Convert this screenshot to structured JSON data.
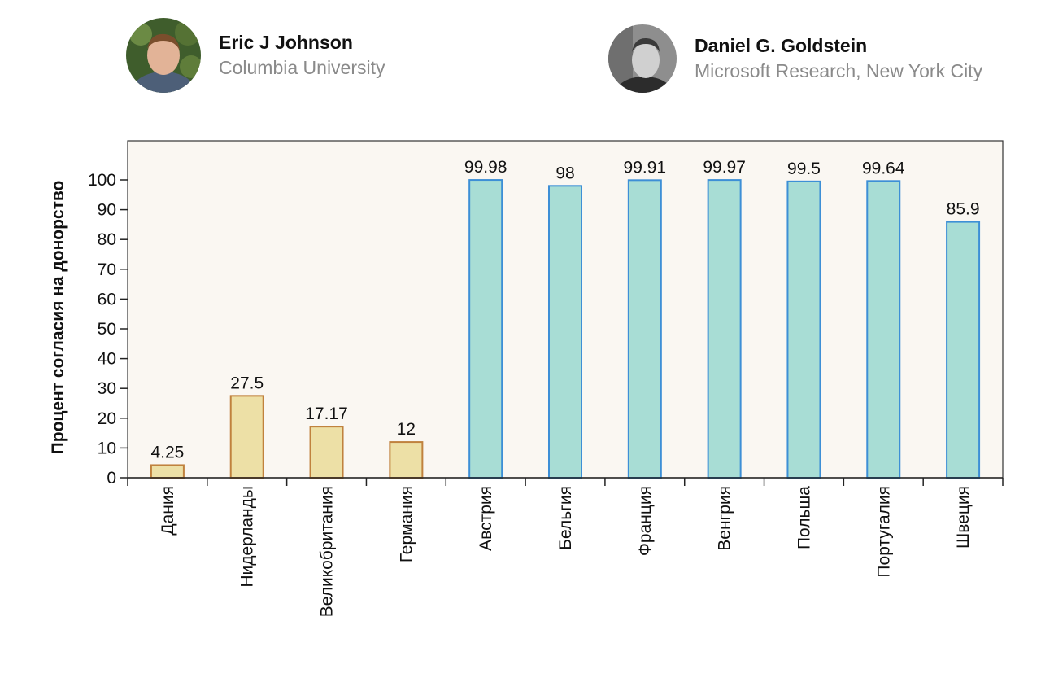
{
  "authors": [
    {
      "name": "Eric J Johnson",
      "affiliation": "Columbia University",
      "avatar_icon": "portrait-photo-icon"
    },
    {
      "name": "Daniel G. Goldstein",
      "affiliation": "Microsoft Research, New York City",
      "avatar_icon": "portrait-photo-icon"
    }
  ],
  "chart_data": {
    "type": "bar",
    "title": "",
    "xlabel": "",
    "ylabel": "Процент согласия на донорство",
    "ylim": [
      0,
      110
    ],
    "yticks": [
      0,
      10,
      20,
      30,
      40,
      50,
      60,
      70,
      80,
      90,
      100
    ],
    "categories": [
      "Дания",
      "Нидерланды",
      "Великобритания",
      "Германия",
      "Австрия",
      "Бельгия",
      "Франция",
      "Венгрия",
      "Польша",
      "Португалия",
      "Швеция"
    ],
    "values": [
      4.25,
      27.5,
      17.17,
      12,
      99.98,
      98,
      99.91,
      99.97,
      99.5,
      99.64,
      85.9
    ],
    "value_labels": [
      "4.25",
      "27.5",
      "17.17",
      "12",
      "99.98",
      "98",
      "99.91",
      "99.97",
      "99.5",
      "99.64",
      "85.9"
    ],
    "groups": [
      "opt-in",
      "opt-in",
      "opt-in",
      "opt-in",
      "opt-out",
      "opt-out",
      "opt-out",
      "opt-out",
      "opt-out",
      "opt-out",
      "opt-out"
    ],
    "colors": {
      "opt-in": {
        "fill": "#ede0a6",
        "stroke": "#c0823e"
      },
      "opt-out": {
        "fill": "#a8ddd5",
        "stroke": "#3d8fd6"
      },
      "plot_background": "#faf7f2"
    }
  }
}
